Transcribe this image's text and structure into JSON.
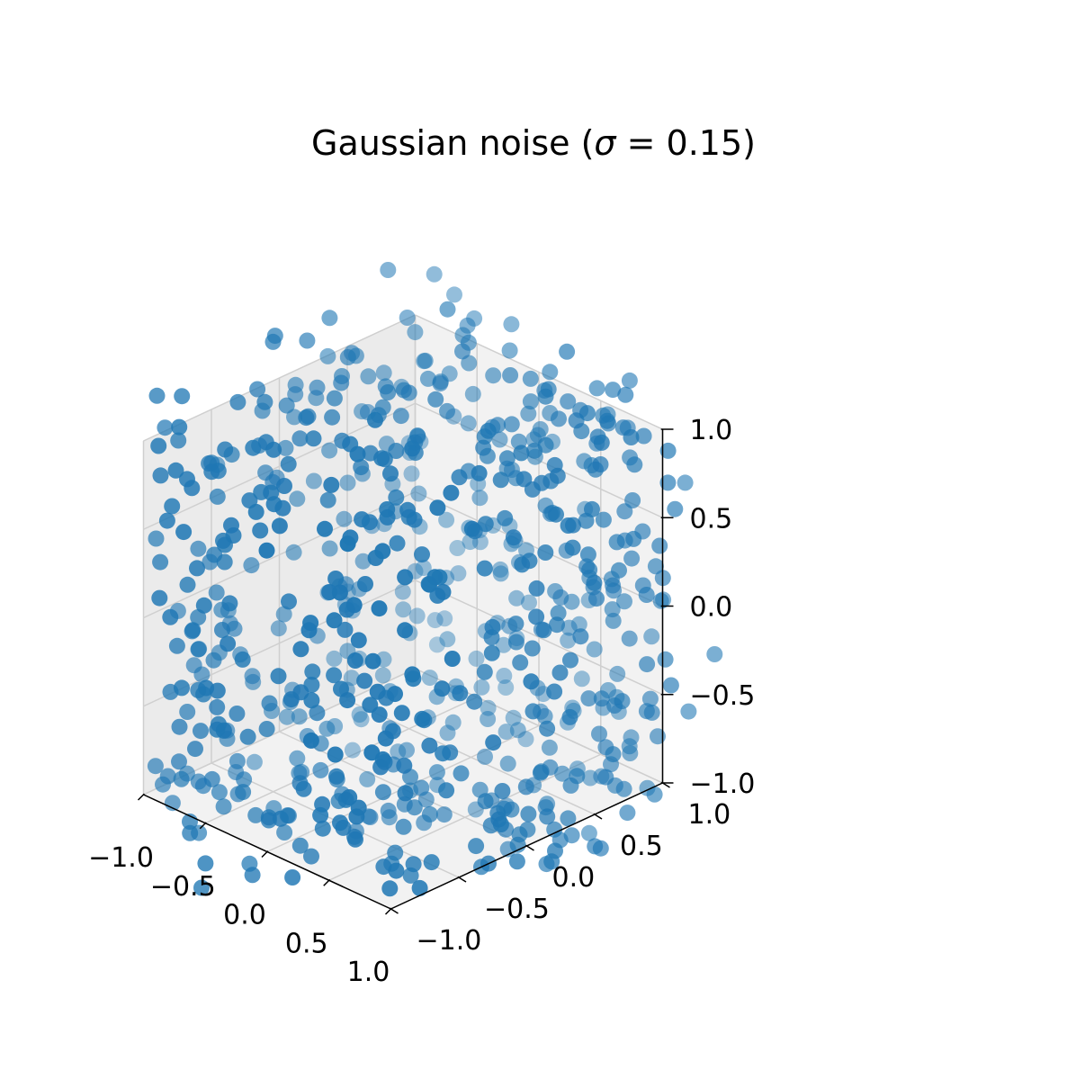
{
  "chart_data": {
    "type": "scatter",
    "projection": "3d",
    "title": "Gaussian noise (σ = 0.15)",
    "title_parts": {
      "prefix": "Gaussian noise (",
      "symbol": "σ",
      "suffix": " = 0.15)"
    },
    "xlabel": "",
    "ylabel": "",
    "zlabel": "",
    "xlim": [
      -1.0,
      1.0
    ],
    "ylim": [
      -1.0,
      1.0
    ],
    "zlim": [
      -1.0,
      1.0
    ],
    "x_ticks": [
      "−1.0",
      "−0.5",
      "0.0",
      "0.5",
      "1.0"
    ],
    "y_ticks": [
      "−1.0",
      "−0.5",
      "0.0",
      "0.5",
      "1.0"
    ],
    "z_ticks": [
      "−1.0",
      "−0.5",
      "0.0",
      "0.5",
      "1.0"
    ],
    "grid": true,
    "marker_color": "#1f77b4",
    "noise_sigma": 0.15,
    "point_count_approx": 720,
    "description_of_points": "noisy samples lying near the six faces of the cube [-1,1]^3 (each point has one coordinate at ±1 plus Gaussian noise)",
    "series": [
      {
        "name": "",
        "points_sample": [
          [
            -0.98,
            0.12,
            0.62
          ],
          [
            1.02,
            -0.35,
            0.48
          ],
          [
            0.44,
            0.97,
            0.15
          ],
          [
            -0.25,
            -1.04,
            -0.3
          ],
          [
            0.1,
            0.32,
            1.01
          ],
          [
            -0.6,
            0.08,
            -0.99
          ],
          [
            0.72,
            -0.51,
            0.99
          ],
          [
            -0.4,
            0.96,
            -0.72
          ],
          [
            0.95,
            0.66,
            -0.2
          ],
          [
            -1.01,
            -0.7,
            -0.45
          ],
          [
            0.3,
            -0.97,
            0.58
          ],
          [
            -0.12,
            0.5,
            -1.03
          ]
        ]
      }
    ]
  }
}
